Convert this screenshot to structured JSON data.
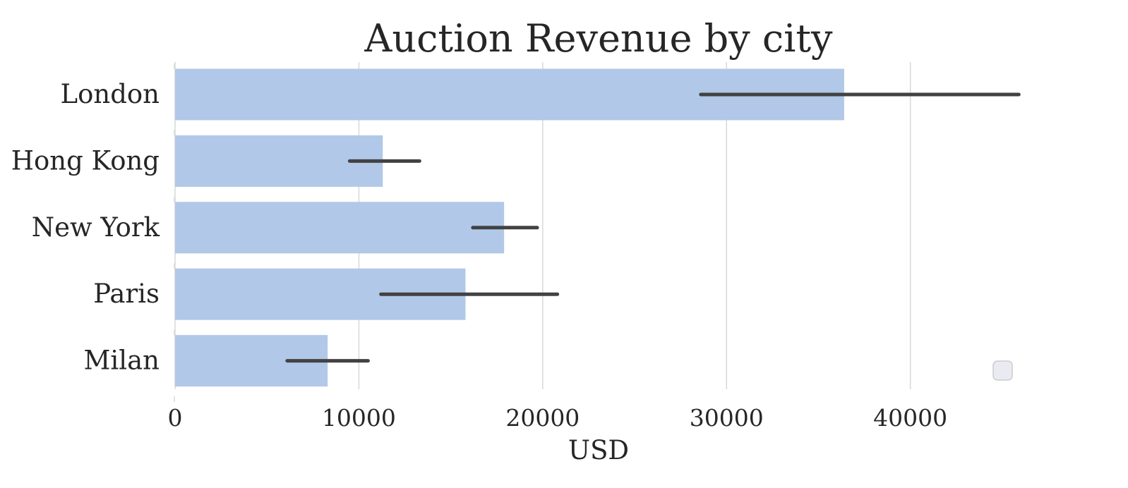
{
  "chart_data": {
    "type": "bar",
    "orientation": "horizontal",
    "title": "Auction Revenue by city",
    "xlabel": "USD",
    "ylabel": "",
    "categories": [
      "London",
      "Hong Kong",
      "New York",
      "Paris",
      "Milan"
    ],
    "values": [
      36400,
      11300,
      17900,
      15800,
      8300
    ],
    "error_bars": [
      [
        28600,
        45900
      ],
      [
        9500,
        13300
      ],
      [
        16200,
        19700
      ],
      [
        11200,
        20800
      ],
      [
        6100,
        10500
      ]
    ],
    "xlim": [
      0,
      48000
    ],
    "xticks": [
      0,
      10000,
      20000,
      30000,
      40000
    ],
    "xtick_labels": [
      "0",
      "10000",
      "20000",
      "30000",
      "40000"
    ],
    "grid": "vertical",
    "legend": "bottom-right (empty)",
    "colors": {
      "bar": "#b1c8e8",
      "error_bar": "#424242",
      "grid": "#d9d9d9",
      "text": "#262626"
    }
  }
}
